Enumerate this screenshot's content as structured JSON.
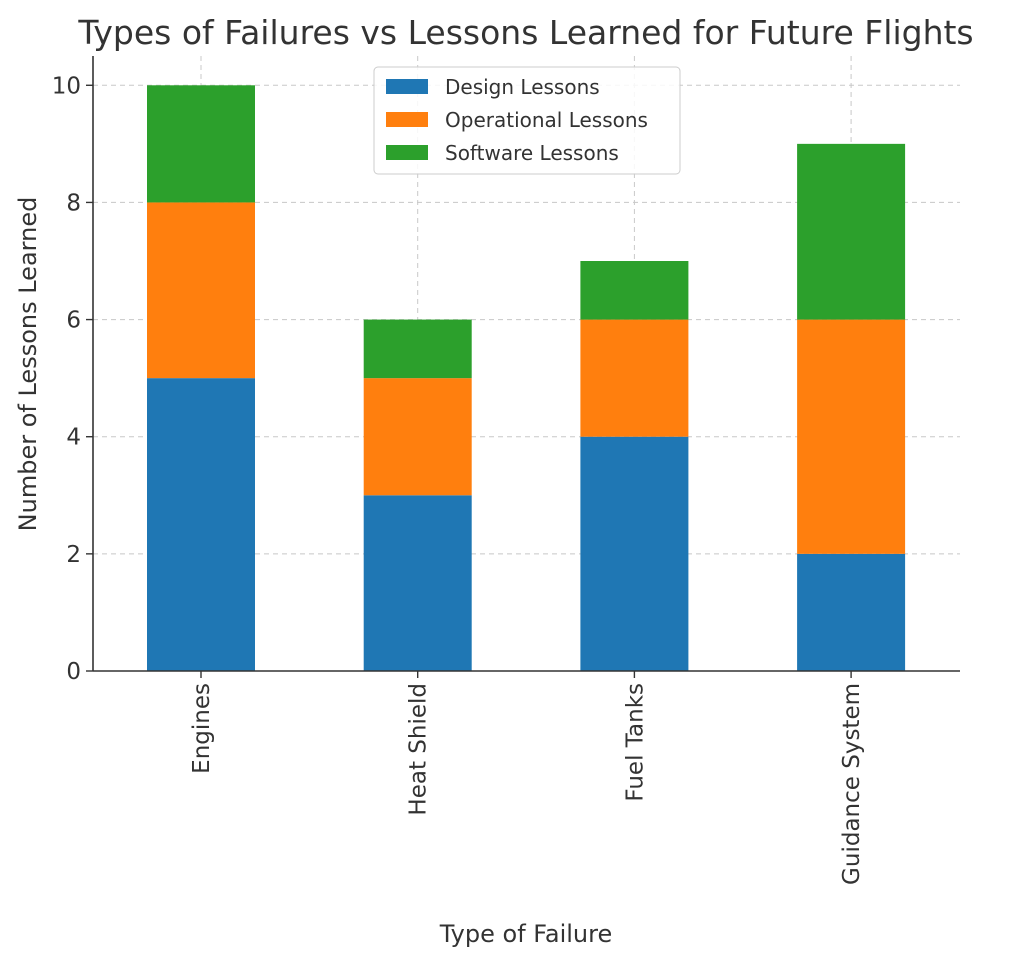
{
  "chart_data": {
    "type": "bar",
    "stacked": true,
    "title": "Types of Failures vs Lessons Learned for Future Flights",
    "xlabel": "Type of Failure",
    "ylabel": "Number of Lessons Learned",
    "categories": [
      "Engines",
      "Heat Shield",
      "Fuel Tanks",
      "Guidance System"
    ],
    "series": [
      {
        "name": "Design Lessons",
        "values": [
          5,
          3,
          4,
          2
        ],
        "color": "#1f77b4"
      },
      {
        "name": "Operational Lessons",
        "values": [
          3,
          2,
          2,
          4
        ],
        "color": "#ff7f0e"
      },
      {
        "name": "Software Lessons",
        "values": [
          2,
          1,
          1,
          3
        ],
        "color": "#2ca02c"
      }
    ],
    "ylim": [
      0,
      10.5
    ],
    "yticks": [
      0,
      2,
      4,
      6,
      8,
      10
    ],
    "grid": true,
    "legend_position": "top-center"
  }
}
